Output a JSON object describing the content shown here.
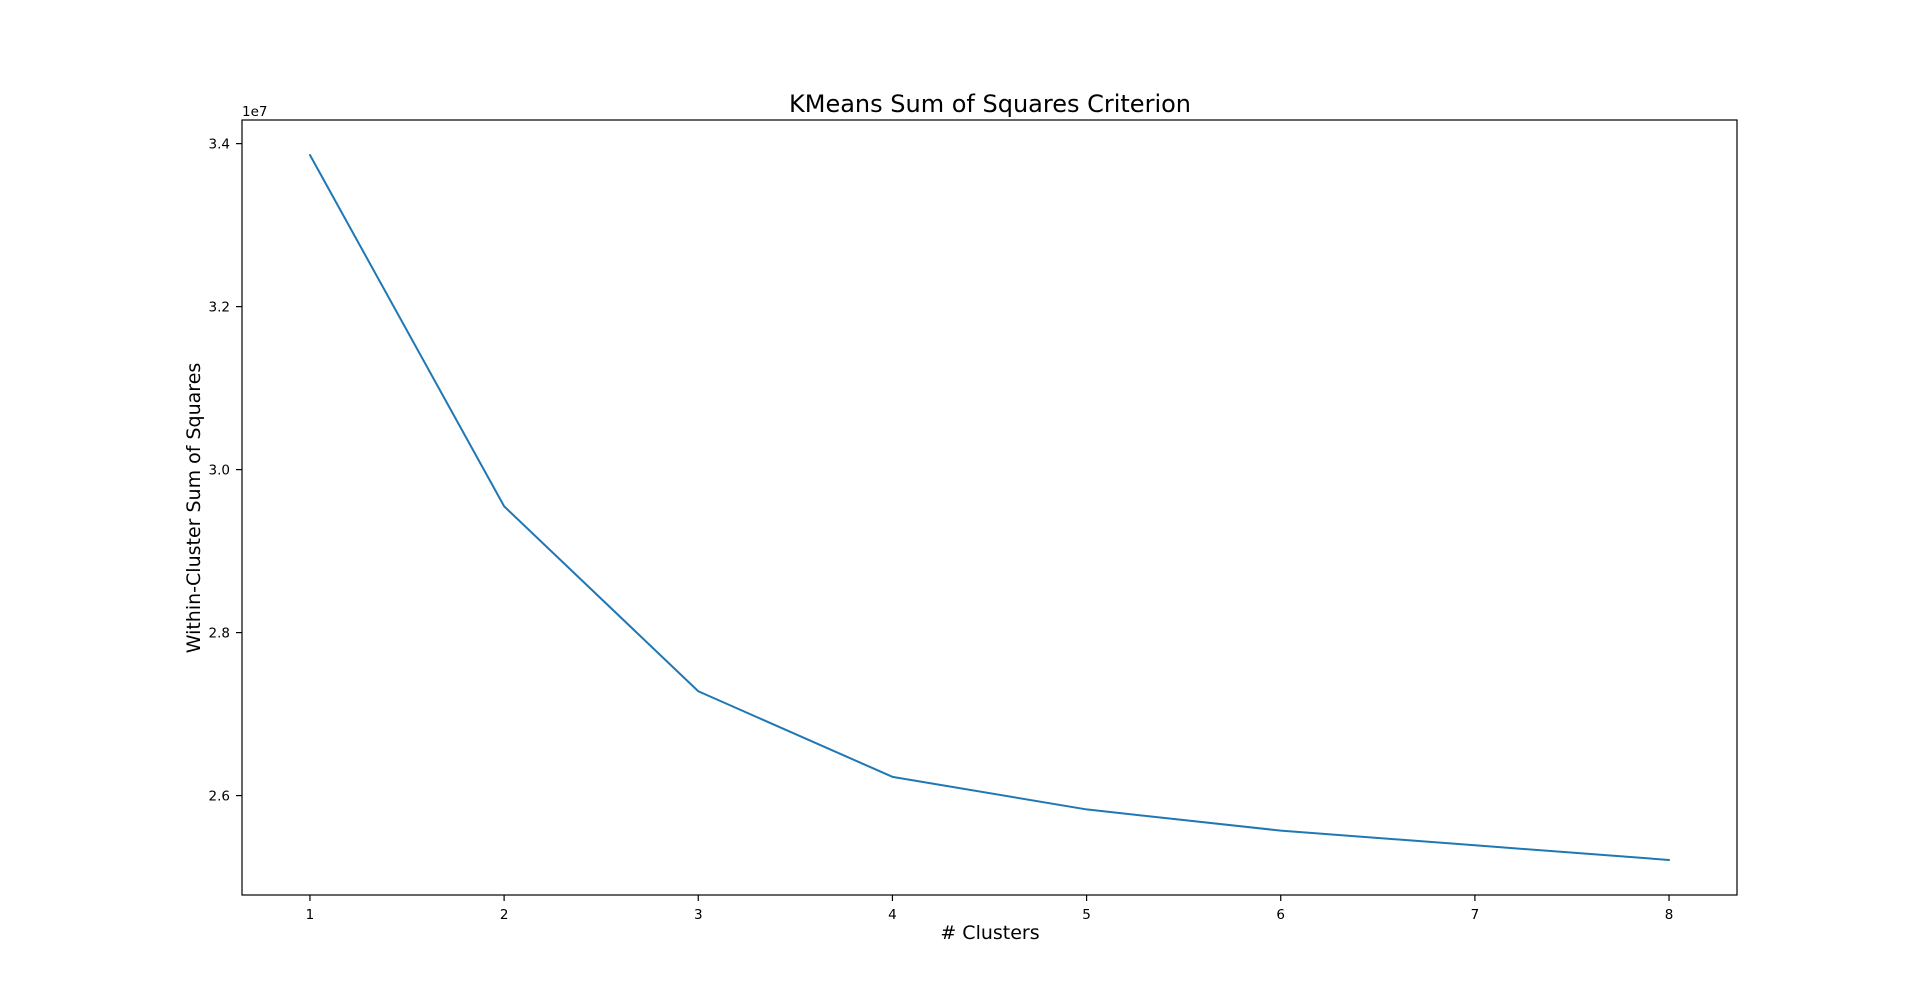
{
  "chart_data": {
    "type": "line",
    "title": "KMeans Sum of Squares Criterion",
    "xlabel": "# Clusters",
    "ylabel": "Within-Cluster Sum of Squares",
    "y_offset_label": "1e7",
    "x": [
      1,
      2,
      3,
      4,
      5,
      6,
      7,
      8
    ],
    "series": [
      {
        "values": [
          33860000,
          29550000,
          27280000,
          26230000,
          25830000,
          25570000,
          25390000,
          25210000
        ],
        "color": "#1f77b4"
      }
    ],
    "x_ticks": [
      1,
      2,
      3,
      4,
      5,
      6,
      7,
      8
    ],
    "x_tick_labels": [
      "1",
      "2",
      "3",
      "4",
      "5",
      "6",
      "7",
      "8"
    ],
    "y_ticks": [
      26000000,
      28000000,
      30000000,
      32000000,
      34000000
    ],
    "y_tick_labels": [
      "2.6",
      "2.8",
      "3.0",
      "3.2",
      "3.4"
    ],
    "xlim": [
      0.65,
      8.35
    ],
    "ylim": [
      24780000,
      34290000
    ],
    "grid": false
  }
}
